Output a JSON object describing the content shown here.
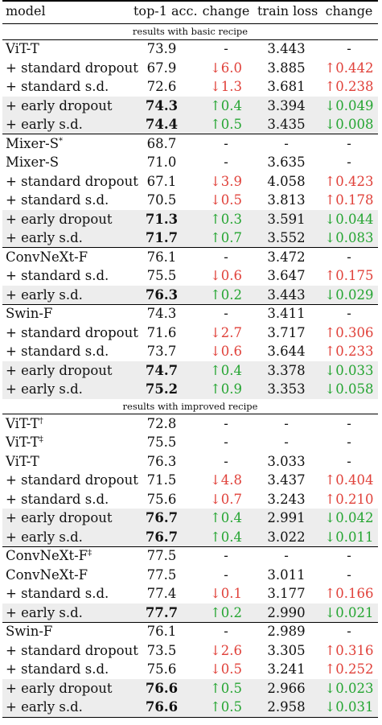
{
  "header": {
    "model": "model",
    "top1": "top-1 acc.",
    "change1": "change",
    "train_loss": "train loss",
    "change2": "change"
  },
  "sections": [
    {
      "title": "results with basic recipe",
      "groups": [
        {
          "rows": [
            {
              "model": "ViT-T",
              "acc": "73.9",
              "ch1": "-",
              "loss": "3.443",
              "ch2": "-"
            },
            {
              "model": "+ standard dropout",
              "acc": "67.9",
              "ch1": "↓6.0",
              "ch1_dir": "down",
              "loss": "3.885",
              "ch2": "↑0.442",
              "ch2_dir": "up"
            },
            {
              "model": "+ standard s.d.",
              "acc": "72.6",
              "ch1": "↓1.3",
              "ch1_dir": "down",
              "loss": "3.681",
              "ch2": "↑0.238",
              "ch2_dir": "up"
            },
            {
              "model": "+ early dropout",
              "acc": "74.3",
              "bold": true,
              "shade": true,
              "ch1": "↑0.4",
              "ch1_dir": "up",
              "loss": "3.394",
              "ch2": "↓0.049",
              "ch2_dir": "down"
            },
            {
              "model": "+ early s.d.",
              "acc": "74.4",
              "bold": true,
              "shade": true,
              "ch1": "↑0.5",
              "ch1_dir": "up",
              "loss": "3.435",
              "ch2": "↓0.008",
              "ch2_dir": "down"
            }
          ]
        },
        {
          "rows": [
            {
              "model": "Mixer-S",
              "sup": "*",
              "acc": "68.7",
              "ch1": "-",
              "loss": "-",
              "ch2": "-"
            },
            {
              "model": "Mixer-S",
              "acc": "71.0",
              "ch1": "-",
              "loss": "3.635",
              "ch2": "-"
            },
            {
              "model": "+ standard dropout",
              "acc": "67.1",
              "ch1": "↓3.9",
              "ch1_dir": "down",
              "loss": "4.058",
              "ch2": "↑0.423",
              "ch2_dir": "up"
            },
            {
              "model": "+ standard s.d.",
              "acc": "70.5",
              "ch1": "↓0.5",
              "ch1_dir": "down",
              "loss": "3.813",
              "ch2": "↑0.178",
              "ch2_dir": "up"
            },
            {
              "model": "+ early dropout",
              "acc": "71.3",
              "bold": true,
              "shade": true,
              "ch1": "↑0.3",
              "ch1_dir": "up",
              "loss": "3.591",
              "ch2": "↓0.044",
              "ch2_dir": "down"
            },
            {
              "model": "+ early s.d.",
              "acc": "71.7",
              "bold": true,
              "shade": true,
              "ch1": "↑0.7",
              "ch1_dir": "up",
              "loss": "3.552",
              "ch2": "↓0.083",
              "ch2_dir": "down"
            }
          ]
        },
        {
          "rows": [
            {
              "model": "ConvNeXt-F",
              "acc": "76.1",
              "ch1": "-",
              "loss": "3.472",
              "ch2": "-"
            },
            {
              "model": "+ standard s.d.",
              "acc": "75.5",
              "ch1": "↓0.6",
              "ch1_dir": "down",
              "loss": "3.647",
              "ch2": "↑0.175",
              "ch2_dir": "up"
            },
            {
              "model": "+ early s.d.",
              "acc": "76.3",
              "bold": true,
              "shade": true,
              "ch1": "↑0.2",
              "ch1_dir": "up",
              "loss": "3.443",
              "ch2": "↓0.029",
              "ch2_dir": "down"
            }
          ]
        },
        {
          "rows": [
            {
              "model": "Swin-F",
              "acc": "74.3",
              "ch1": "-",
              "loss": "3.411",
              "ch2": "-"
            },
            {
              "model": "+ standard dropout",
              "acc": "71.6",
              "ch1": "↓2.7",
              "ch1_dir": "down",
              "loss": "3.717",
              "ch2": "↑0.306",
              "ch2_dir": "up"
            },
            {
              "model": "+ standard s.d.",
              "acc": "73.7",
              "ch1": "↓0.6",
              "ch1_dir": "down",
              "loss": "3.644",
              "ch2": "↑0.233",
              "ch2_dir": "up"
            },
            {
              "model": "+ early dropout",
              "acc": "74.7",
              "bold": true,
              "shade": true,
              "ch1": "↑0.4",
              "ch1_dir": "up",
              "loss": "3.378",
              "ch2": "↓0.033",
              "ch2_dir": "down"
            },
            {
              "model": "+ early s.d.",
              "acc": "75.2",
              "bold": true,
              "shade": true,
              "ch1": "↑0.9",
              "ch1_dir": "up",
              "loss": "3.353",
              "ch2": "↓0.058",
              "ch2_dir": "down"
            }
          ]
        }
      ]
    },
    {
      "title": "results with improved recipe",
      "groups": [
        {
          "rows": [
            {
              "model": "ViT-T",
              "sup": "†",
              "acc": "72.8",
              "ch1": "-",
              "loss": "-",
              "ch2": "-"
            },
            {
              "model": "ViT-T",
              "sup": "‡",
              "acc": "75.5",
              "ch1": "-",
              "loss": "-",
              "ch2": "-"
            },
            {
              "model": "ViT-T",
              "acc": "76.3",
              "ch1": "-",
              "loss": "3.033",
              "ch2": "-"
            },
            {
              "model": "+ standard dropout",
              "acc": "71.5",
              "ch1": "↓4.8",
              "ch1_dir": "down",
              "loss": "3.437",
              "ch2": "↑0.404",
              "ch2_dir": "up"
            },
            {
              "model": "+ standard s.d.",
              "acc": "75.6",
              "ch1": "↓0.7",
              "ch1_dir": "down",
              "loss": "3.243",
              "ch2": "↑0.210",
              "ch2_dir": "up"
            },
            {
              "model": "+ early dropout",
              "acc": "76.7",
              "bold": true,
              "shade": true,
              "ch1": "↑0.4",
              "ch1_dir": "up",
              "loss": "2.991",
              "ch2": "↓0.042",
              "ch2_dir": "down"
            },
            {
              "model": "+ early s.d.",
              "acc": "76.7",
              "bold": true,
              "shade": true,
              "ch1": "↑0.4",
              "ch1_dir": "up",
              "loss": "3.022",
              "ch2": "↓0.011",
              "ch2_dir": "down"
            }
          ]
        },
        {
          "rows": [
            {
              "model": "ConvNeXt-F",
              "sup": "‡",
              "acc": "77.5",
              "ch1": "-",
              "loss": "-",
              "ch2": "-"
            },
            {
              "model": "ConvNeXt-F",
              "acc": "77.5",
              "ch1": "-",
              "loss": "3.011",
              "ch2": "-"
            },
            {
              "model": "+ standard s.d.",
              "acc": "77.4",
              "ch1": "↓0.1",
              "ch1_dir": "down",
              "loss": "3.177",
              "ch2": "↑0.166",
              "ch2_dir": "up"
            },
            {
              "model": "+ early s.d.",
              "acc": "77.7",
              "bold": true,
              "shade": true,
              "ch1": "↑0.2",
              "ch1_dir": "up",
              "loss": "2.990",
              "ch2": "↓0.021",
              "ch2_dir": "down"
            }
          ]
        },
        {
          "rows": [
            {
              "model": "Swin-F",
              "acc": "76.1",
              "ch1": "-",
              "loss": "2.989",
              "ch2": "-"
            },
            {
              "model": "+ standard dropout",
              "acc": "73.5",
              "ch1": "↓2.6",
              "ch1_dir": "down",
              "loss": "3.305",
              "ch2": "↑0.316",
              "ch2_dir": "up"
            },
            {
              "model": "+ standard s.d.",
              "acc": "75.6",
              "ch1": "↓0.5",
              "ch1_dir": "down",
              "loss": "3.241",
              "ch2": "↑0.252",
              "ch2_dir": "up"
            },
            {
              "model": "+ early dropout",
              "acc": "76.6",
              "bold": true,
              "shade": true,
              "ch1": "↑0.5",
              "ch1_dir": "up",
              "loss": "2.966",
              "ch2": "↓0.023",
              "ch2_dir": "down"
            },
            {
              "model": "+ early s.d.",
              "acc": "76.6",
              "bold": true,
              "shade": true,
              "ch1": "↑0.5",
              "ch1_dir": "up",
              "loss": "2.958",
              "ch2": "↓0.031",
              "ch2_dir": "down"
            }
          ]
        }
      ]
    }
  ],
  "colors": {
    "decrease_acc": "#e0413a",
    "increase_acc": "#25a532",
    "shade": "#ededed"
  }
}
